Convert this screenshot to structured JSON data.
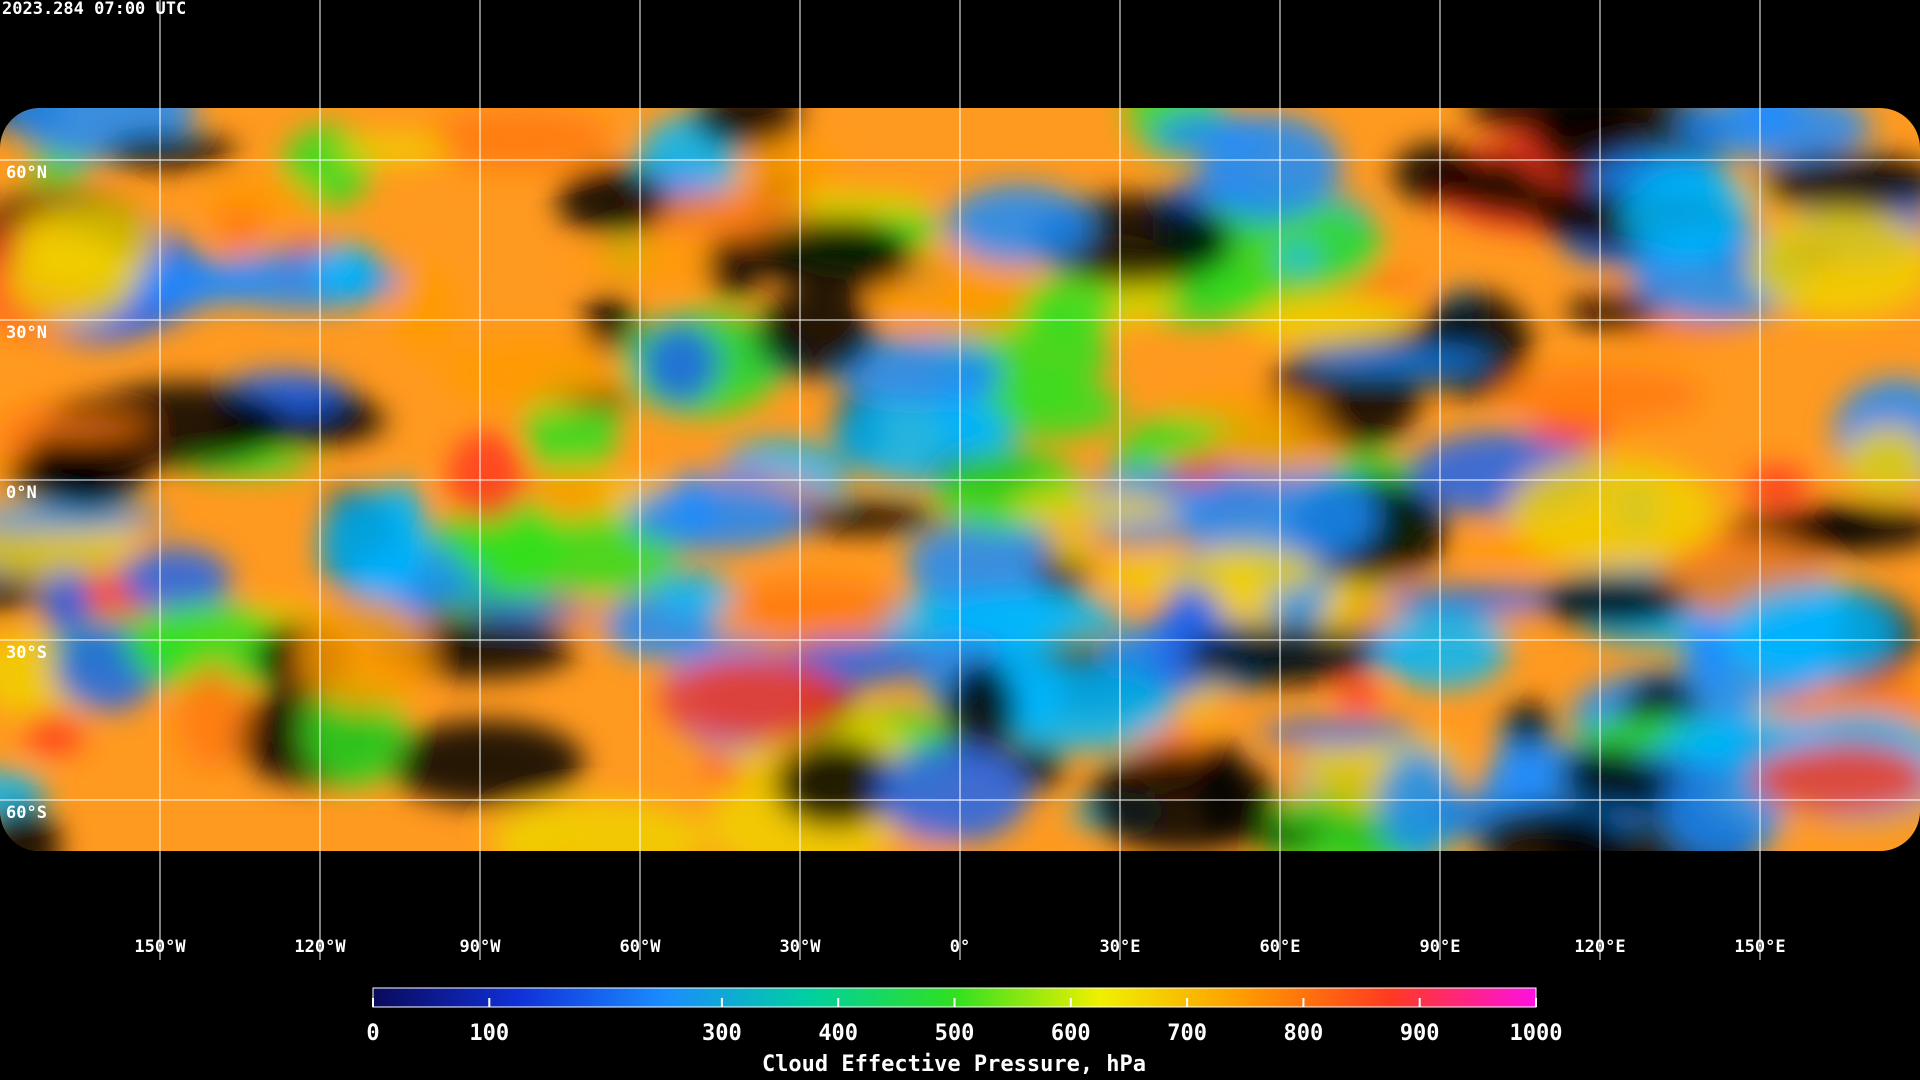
{
  "header": {
    "timestamp": "2023.284 07:00 UTC"
  },
  "chart_data": {
    "type": "map",
    "xlim": [
      -180,
      180
    ],
    "ylim": [
      -90,
      90
    ],
    "xticks": [
      {
        "value": -150,
        "label": "150°W"
      },
      {
        "value": -120,
        "label": "120°W"
      },
      {
        "value": -90,
        "label": "90°W"
      },
      {
        "value": -60,
        "label": "60°W"
      },
      {
        "value": -30,
        "label": "30°W"
      },
      {
        "value": 0,
        "label": "0°"
      },
      {
        "value": 30,
        "label": "30°E"
      },
      {
        "value": 60,
        "label": "60°E"
      },
      {
        "value": 90,
        "label": "90°E"
      },
      {
        "value": 120,
        "label": "120°E"
      },
      {
        "value": 150,
        "label": "150°E"
      }
    ],
    "yticks": [
      {
        "value": 60,
        "label": "60°N"
      },
      {
        "value": 30,
        "label": "30°N"
      },
      {
        "value": 0,
        "label": "0°N"
      },
      {
        "value": -30,
        "label": "30°S"
      },
      {
        "value": -60,
        "label": "60°S"
      }
    ],
    "grid": true,
    "colorbar": {
      "label": "Cloud Effective Pressure, hPa",
      "lim": [
        0,
        1000
      ],
      "ticks": [
        0,
        100,
        300,
        400,
        500,
        600,
        700,
        800,
        900,
        1000
      ],
      "colors": [
        "#0a0a5a",
        "#1030d8",
        "#1a8cff",
        "#00d0a0",
        "#30e020",
        "#f0f000",
        "#ff9a00",
        "#ff3a20",
        "#ff10e0"
      ]
    }
  }
}
